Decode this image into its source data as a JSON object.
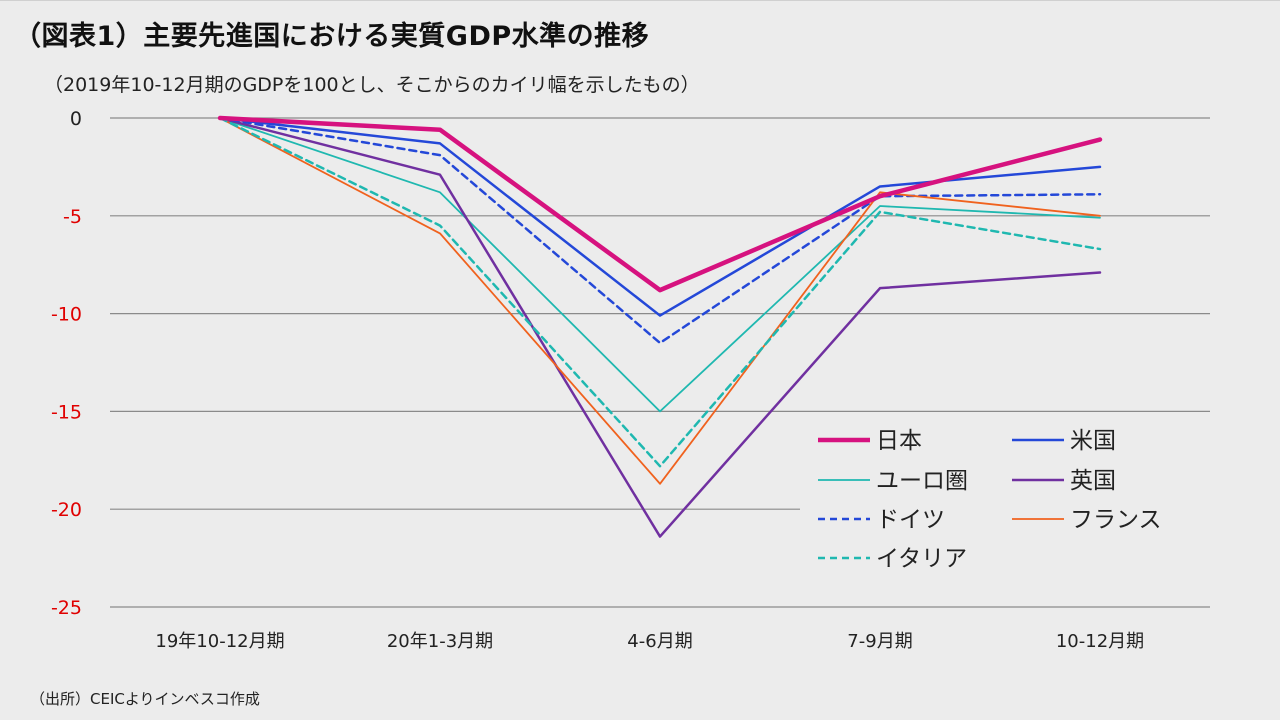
{
  "title": "（図表1）主要先進国における実質GDP水準の推移",
  "subtitle": "（2019年10-12月期のGDPを100とし、そこからのカイリ幅を示したもの）",
  "source": "（出所）CEICよりインベスコ作成",
  "chart_data": {
    "type": "line",
    "title": "（図表1）主要先進国における実質GDP水準の推移",
    "subtitle": "（2019年10-12月期のGDPを100とし、そこからのカイリ幅を示したもの）",
    "xlabel": "",
    "ylabel": "",
    "ylim": [
      -25,
      0
    ],
    "yticks": [
      0,
      -5,
      -10,
      -15,
      -20,
      -25
    ],
    "ytick_labels": [
      "0",
      "-5",
      "-10",
      "-15",
      "-20",
      "-25"
    ],
    "categories": [
      "19年10-12月期",
      "20年1-3月期",
      "4-6月期",
      "7-9月期",
      "10-12月期"
    ],
    "grid": true,
    "legend_position": "bottom-right",
    "series": [
      {
        "name": "日本",
        "color": "#d6127f",
        "style": "solid",
        "weight": "bold",
        "values": [
          0,
          -0.6,
          -8.8,
          -4.0,
          -1.1
        ]
      },
      {
        "name": "米国",
        "color": "#2448d8",
        "style": "solid",
        "weight": "normal",
        "values": [
          0,
          -1.3,
          -10.1,
          -3.5,
          -2.5
        ]
      },
      {
        "name": "ユーロ圏",
        "color": "#1fb8b0",
        "style": "solid",
        "weight": "thin",
        "values": [
          0,
          -3.8,
          -15.0,
          -4.5,
          -5.1
        ]
      },
      {
        "name": "英国",
        "color": "#7030a0",
        "style": "solid",
        "weight": "normal",
        "values": [
          0,
          -2.9,
          -21.4,
          -8.7,
          -7.9
        ]
      },
      {
        "name": "ドイツ",
        "color": "#2448d8",
        "style": "dashed",
        "weight": "normal",
        "values": [
          0,
          -1.9,
          -11.5,
          -4.0,
          -3.9
        ]
      },
      {
        "name": "フランス",
        "color": "#f0621e",
        "style": "solid",
        "weight": "thin",
        "values": [
          0,
          -5.9,
          -18.7,
          -3.8,
          -5.0
        ]
      },
      {
        "name": "イタリア",
        "color": "#1fb8b0",
        "style": "dashed",
        "weight": "normal",
        "values": [
          0,
          -5.5,
          -17.8,
          -4.8,
          -6.7
        ]
      }
    ]
  }
}
